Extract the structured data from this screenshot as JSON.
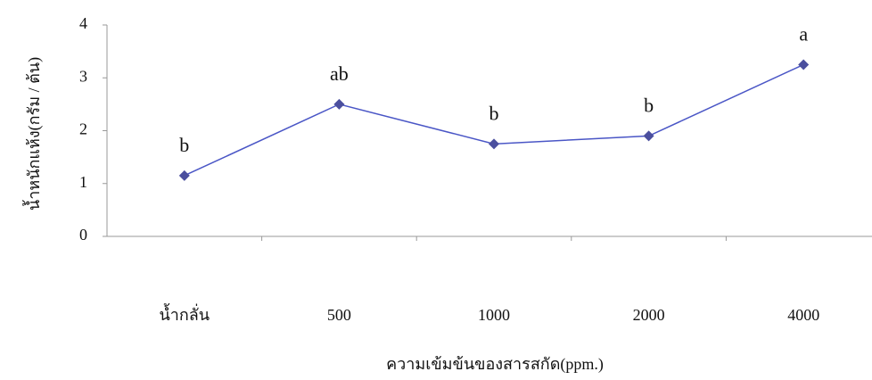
{
  "chart_data": {
    "type": "line",
    "y_label": "น้ำหนักแห้ง(กรัม / ต้น)",
    "x_label": "ความเข้มข้นของสารสกัด(ppm.)",
    "categories": [
      "น้ำกลั่น",
      "500",
      "1000",
      "2000",
      "4000"
    ],
    "values": [
      1.15,
      2.5,
      1.75,
      1.9,
      3.25
    ],
    "annotations": [
      "b",
      "ab",
      "b",
      "b",
      "a"
    ],
    "color": "#4a56c6",
    "marker_color": "#4b4f9e",
    "ylim": [
      0,
      4
    ],
    "yticks": [
      0,
      1,
      2,
      3,
      4
    ]
  }
}
